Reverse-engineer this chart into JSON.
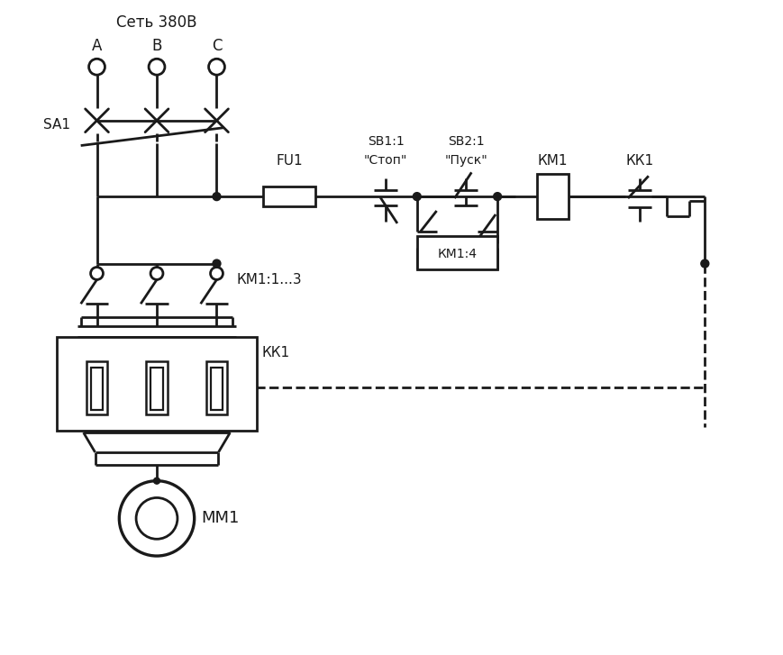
{
  "background_color": "#ffffff",
  "line_color": "#1a1a1a",
  "line_width": 2.0,
  "text_color": "#1a1a1a",
  "labels": {
    "net": "Сеть 380В",
    "A": "А",
    "B": "В",
    "C": "С",
    "SA1": "SA1",
    "FU1": "FU1",
    "SB1_top": "SB1:1",
    "SB1_bot": "\"Стоп\"",
    "SB2_top": "SB2:1",
    "SB2_bot": "\"Пуск\"",
    "KM1_label": "КМ1",
    "KK1_ctrl": "КК1",
    "KM14": "КМ1:4",
    "KM1_13": "КМ1:1...3",
    "KK1_power": "КК1",
    "MM1": "ММ1"
  }
}
